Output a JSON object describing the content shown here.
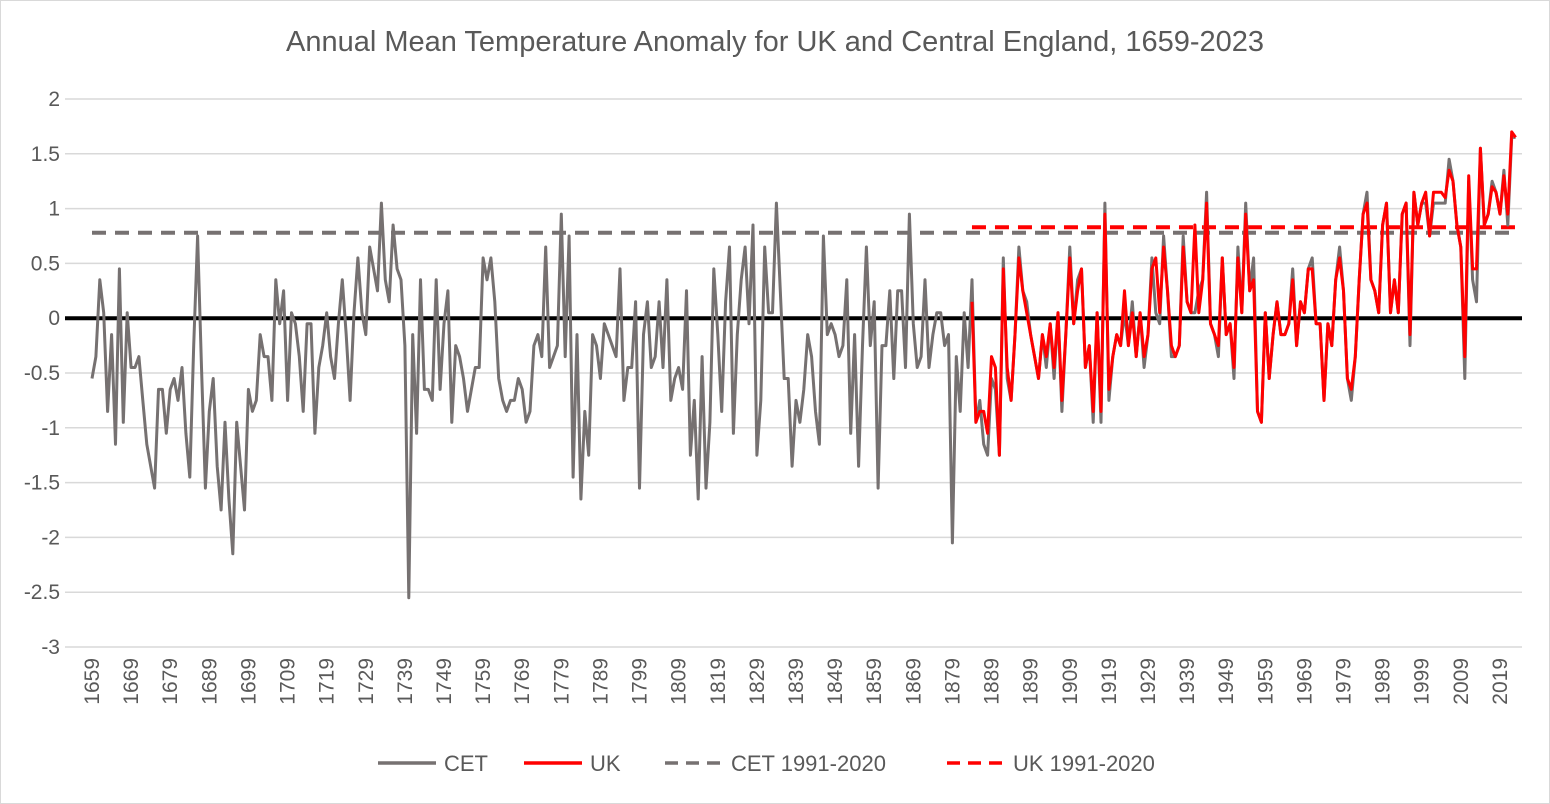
{
  "chart_data": {
    "type": "line",
    "title": "Annual Mean Temperature Anomaly for UK and Central England, 1659-2023",
    "xlabel": "",
    "ylabel": "",
    "ylim": [
      -3,
      2
    ],
    "yticks": [
      "2",
      "1.5",
      "1",
      "0.5",
      "0",
      "-0.5",
      "-1",
      "-1.5",
      "-2",
      "-2.5",
      "-3"
    ],
    "xticks": [
      "1659",
      "1669",
      "1679",
      "1689",
      "1699",
      "1709",
      "1719",
      "1729",
      "1739",
      "1749",
      "1759",
      "1769",
      "1779",
      "1789",
      "1799",
      "1809",
      "1819",
      "1829",
      "1839",
      "1849",
      "1859",
      "1869",
      "1879",
      "1889",
      "1899",
      "1909",
      "1919",
      "1929",
      "1939",
      "1949",
      "1959",
      "1969",
      "1979",
      "1989",
      "1999",
      "2009",
      "2019"
    ],
    "xlim": [
      1659,
      2023
    ],
    "grid": true,
    "legend_position": "bottom",
    "zero_line": true,
    "series": [
      {
        "name": "CET",
        "color": "#767171",
        "style": "solid",
        "start_year": 1659,
        "values": [
          -0.55,
          -0.35,
          0.35,
          0.05,
          -0.85,
          -0.15,
          -1.15,
          0.45,
          -0.95,
          0.05,
          -0.45,
          -0.45,
          -0.35,
          -0.75,
          -1.15,
          -1.35,
          -1.55,
          -0.65,
          -0.65,
          -1.05,
          -0.65,
          -0.55,
          -0.75,
          -0.45,
          -1.05,
          -1.45,
          -0.25,
          0.75,
          -0.45,
          -1.55,
          -0.85,
          -0.55,
          -1.35,
          -1.75,
          -0.95,
          -1.65,
          -2.15,
          -0.95,
          -1.35,
          -1.75,
          -0.65,
          -0.85,
          -0.75,
          -0.15,
          -0.35,
          -0.35,
          -0.75,
          0.35,
          -0.05,
          0.25,
          -0.75,
          0.05,
          -0.05,
          -0.35,
          -0.85,
          -0.05,
          -0.05,
          -1.05,
          -0.45,
          -0.25,
          0.05,
          -0.35,
          -0.55,
          -0.05,
          0.35,
          -0.15,
          -0.75,
          0.05,
          0.55,
          0.05,
          -0.15,
          0.65,
          0.45,
          0.25,
          1.05,
          0.35,
          0.15,
          0.85,
          0.45,
          0.35,
          -0.25,
          -2.55,
          -0.15,
          -1.05,
          0.35,
          -0.65,
          -0.65,
          -0.75,
          0.35,
          -0.65,
          -0.05,
          0.25,
          -0.95,
          -0.25,
          -0.35,
          -0.55,
          -0.85,
          -0.65,
          -0.45,
          -0.45,
          0.55,
          0.35,
          0.55,
          0.15,
          -0.55,
          -0.75,
          -0.85,
          -0.75,
          -0.75,
          -0.55,
          -0.65,
          -0.95,
          -0.85,
          -0.25,
          -0.15,
          -0.35,
          0.65,
          -0.45,
          -0.35,
          -0.25,
          0.95,
          -0.35,
          0.75,
          -1.45,
          -0.15,
          -1.65,
          -0.85,
          -1.25,
          -0.15,
          -0.25,
          -0.55,
          -0.05,
          -0.15,
          -0.25,
          -0.35,
          0.45,
          -0.75,
          -0.45,
          -0.45,
          0.15,
          -1.55,
          -0.15,
          0.15,
          -0.45,
          -0.35,
          0.15,
          -0.45,
          0.35,
          -0.75,
          -0.55,
          -0.45,
          -0.65,
          0.25,
          -1.25,
          -0.75,
          -1.65,
          -0.35,
          -1.55,
          -0.95,
          0.45,
          -0.15,
          -0.85,
          0.15,
          0.65,
          -1.05,
          -0.15,
          0.35,
          0.65,
          -0.05,
          0.85,
          -1.25,
          -0.75,
          0.65,
          0.05,
          0.05,
          1.05,
          0.25,
          -0.55,
          -0.55,
          -1.35,
          -0.75,
          -0.95,
          -0.65,
          -0.15,
          -0.35,
          -0.85,
          -1.15,
          0.75,
          -0.15,
          -0.05,
          -0.15,
          -0.35,
          -0.25,
          0.35,
          -1.05,
          -0.15,
          -1.35,
          -0.25,
          0.65,
          -0.25,
          0.15,
          -1.55,
          -0.25,
          -0.25,
          0.25,
          -0.55,
          0.25,
          0.25,
          -0.45,
          0.95,
          -0.05,
          -0.45,
          -0.35,
          0.35,
          -0.45,
          -0.15,
          0.05,
          0.05,
          -0.25,
          -0.15,
          -2.05,
          -0.35,
          -0.85,
          0.05,
          -0.45,
          0.35,
          -0.95,
          -0.75,
          -1.15,
          -1.25,
          -0.55,
          -0.65,
          -1.25,
          0.55,
          -0.55,
          -0.75,
          -0.15,
          0.65,
          0.25,
          0.15,
          -0.15,
          -0.35,
          -0.55,
          -0.15,
          -0.45,
          -0.05,
          -0.55,
          0.05,
          -0.85,
          -0.15,
          0.65,
          -0.05,
          0.35,
          0.45,
          -0.45,
          -0.25,
          -0.95,
          0.05,
          -0.95,
          1.05,
          -0.75,
          -0.35,
          -0.15,
          -0.25,
          0.05,
          -0.25,
          0.15,
          -0.35,
          0.05,
          -0.45,
          -0.15,
          0.55,
          0.05,
          -0.05,
          0.75,
          0.25,
          -0.35,
          -0.35,
          -0.25,
          0.75,
          0.15,
          0.05,
          0.05,
          0.25,
          0.35,
          1.15,
          -0.05,
          -0.15,
          -0.35,
          0.55,
          -0.15,
          -0.05,
          -0.55,
          0.65,
          0.05,
          1.05,
          0.25,
          0.55,
          -0.85,
          -0.95,
          0.05,
          -0.55,
          -0.15,
          0.15,
          -0.15,
          -0.15,
          -0.05,
          0.45,
          -0.25,
          0.15,
          0.05,
          0.45,
          0.55,
          -0.05,
          -0.05,
          -0.75,
          -0.05,
          -0.25,
          0.35,
          0.65,
          0.25,
          -0.55,
          -0.75,
          -0.35,
          0.35,
          0.95,
          1.15,
          0.35,
          0.25,
          0.05,
          0.85,
          1.05,
          0.05,
          0.35,
          0.05,
          0.95,
          1.05,
          -0.25,
          1.15,
          0.85,
          1.05,
          1.05,
          0.75,
          1.05,
          1.05,
          1.05,
          1.05,
          1.45,
          1.25,
          0.85,
          0.65,
          -0.55,
          1.25,
          0.35,
          0.15,
          1.55,
          0.85,
          0.95,
          1.25,
          1.15,
          0.95,
          1.35,
          0.85,
          1.65,
          1.65
        ]
      },
      {
        "name": "UK",
        "color": "#ff0000",
        "style": "solid",
        "start_year": 1884,
        "values": [
          0.15,
          -0.95,
          -0.85,
          -0.85,
          -1.05,
          -0.35,
          -0.45,
          -1.25,
          0.45,
          -0.45,
          -0.75,
          -0.15,
          0.55,
          0.25,
          0.05,
          -0.15,
          -0.35,
          -0.55,
          -0.15,
          -0.35,
          -0.05,
          -0.45,
          0.05,
          -0.75,
          -0.15,
          0.55,
          -0.05,
          0.25,
          0.45,
          -0.45,
          -0.25,
          -0.85,
          0.05,
          -0.85,
          0.95,
          -0.65,
          -0.35,
          -0.15,
          -0.25,
          0.25,
          -0.25,
          0.05,
          -0.35,
          0.05,
          -0.35,
          -0.15,
          0.45,
          0.55,
          0.05,
          0.65,
          0.25,
          -0.25,
          -0.35,
          -0.25,
          0.65,
          0.15,
          0.05,
          0.85,
          0.05,
          0.35,
          1.05,
          -0.05,
          -0.15,
          -0.25,
          0.55,
          -0.15,
          -0.05,
          -0.45,
          0.55,
          0.05,
          0.95,
          0.25,
          0.35,
          -0.85,
          -0.95,
          0.05,
          -0.55,
          -0.15,
          0.15,
          -0.15,
          -0.15,
          -0.05,
          0.35,
          -0.25,
          0.15,
          0.05,
          0.45,
          0.45,
          -0.05,
          -0.05,
          -0.75,
          -0.05,
          -0.25,
          0.35,
          0.55,
          0.25,
          -0.55,
          -0.65,
          -0.35,
          0.35,
          0.95,
          1.05,
          0.35,
          0.25,
          0.05,
          0.85,
          1.05,
          0.05,
          0.35,
          0.05,
          0.95,
          1.05,
          -0.15,
          1.15,
          0.85,
          1.05,
          1.15,
          0.75,
          1.15,
          1.15,
          1.15,
          1.1,
          1.35,
          1.25,
          0.85,
          0.65,
          -0.35,
          1.3,
          0.45,
          0.45,
          1.55,
          0.85,
          0.95,
          1.2,
          1.15,
          0.95,
          1.3,
          0.95,
          1.7,
          1.65
        ]
      },
      {
        "name": "CET 1991-2020",
        "color": "#767171",
        "style": "dashed",
        "x_range": [
          1659,
          2023
        ],
        "value": 0.78
      },
      {
        "name": "UK 1991-2020",
        "color": "#ff0000",
        "style": "dashed",
        "x_range": [
          1884,
          2023
        ],
        "value": 0.83
      }
    ]
  }
}
